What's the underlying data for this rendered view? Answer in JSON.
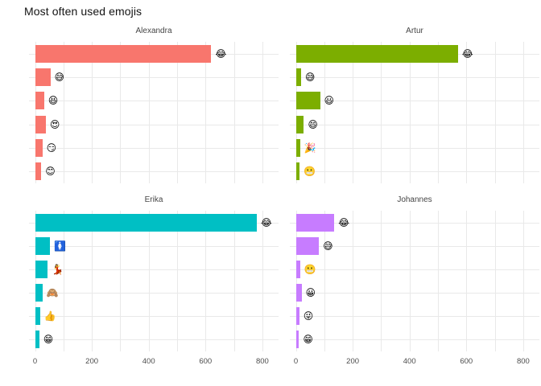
{
  "title": "Most often used emojis",
  "chart_data": {
    "type": "bar",
    "orientation": "horizontal",
    "title": "Most often used emojis",
    "xlabel": "",
    "ylabel": "",
    "grid": true,
    "legend": "none",
    "x_axis_ticks_labeled": [
      0,
      200,
      400,
      600,
      800
    ],
    "x_gridline_interval": 100,
    "xlim": [
      0,
      855
    ],
    "facets": [
      {
        "name": "Alexandra",
        "color": "#F8766D",
        "bars": [
          {
            "emoji": "😂",
            "emoji_name": "face-with-tears-of-joy-emoji",
            "value": 620
          },
          {
            "emoji": "😅",
            "emoji_name": "grinning-face-with-sweat-emoji",
            "value": 54
          },
          {
            "emoji": "😆",
            "emoji_name": "grinning-squinting-face-emoji",
            "value": 32
          },
          {
            "emoji": "😍",
            "emoji_name": "smiling-face-with-heart-eyes-emoji",
            "value": 38
          },
          {
            "emoji": "😏",
            "emoji_name": "smirking-face-emoji",
            "value": 26
          },
          {
            "emoji": "😊",
            "emoji_name": "smiling-face-with-smiling-eyes-emoji",
            "value": 22
          }
        ]
      },
      {
        "name": "Artur",
        "color": "#7CAE00",
        "bars": [
          {
            "emoji": "😂",
            "emoji_name": "face-with-tears-of-joy-emoji",
            "value": 570
          },
          {
            "emoji": "😅",
            "emoji_name": "grinning-face-with-sweat-emoji",
            "value": 18
          },
          {
            "emoji": "😃",
            "emoji_name": "grinning-face-with-big-eyes-emoji",
            "value": 85
          },
          {
            "emoji": "😄",
            "emoji_name": "grinning-face-with-smiling-eyes-emoji",
            "value": 28
          },
          {
            "emoji": "🎉",
            "emoji_name": "party-popper-emoji",
            "value": 15
          },
          {
            "emoji": "😬",
            "emoji_name": "grimacing-face-emoji",
            "value": 13
          }
        ]
      },
      {
        "name": "Erika",
        "color": "#00BFC4",
        "bars": [
          {
            "emoji": "😂",
            "emoji_name": "face-with-tears-of-joy-emoji",
            "value": 780
          },
          {
            "emoji": "🚺",
            "emoji_name": "womens-room-emoji",
            "value": 53
          },
          {
            "emoji": "💃",
            "emoji_name": "woman-dancing-emoji",
            "value": 45
          },
          {
            "emoji": "🙈",
            "emoji_name": "see-no-evil-monkey-emoji",
            "value": 26
          },
          {
            "emoji": "👍",
            "emoji_name": "thumbs-up-emoji",
            "value": 18
          },
          {
            "emoji": "😁",
            "emoji_name": "beaming-face-with-smiling-eyes-emoji",
            "value": 15
          }
        ]
      },
      {
        "name": "Johannes",
        "color": "#C77CFF",
        "bars": [
          {
            "emoji": "😂",
            "emoji_name": "face-with-tears-of-joy-emoji",
            "value": 135
          },
          {
            "emoji": "😅",
            "emoji_name": "grinning-face-with-sweat-emoji",
            "value": 81
          },
          {
            "emoji": "😬",
            "emoji_name": "grimacing-face-emoji",
            "value": 15
          },
          {
            "emoji": "😀",
            "emoji_name": "grinning-face-emoji",
            "value": 20
          },
          {
            "emoji": "😜",
            "emoji_name": "winking-face-with-tongue-emoji",
            "value": 12
          },
          {
            "emoji": "😁",
            "emoji_name": "beaming-face-with-smiling-eyes-emoji",
            "value": 11
          }
        ]
      }
    ]
  }
}
